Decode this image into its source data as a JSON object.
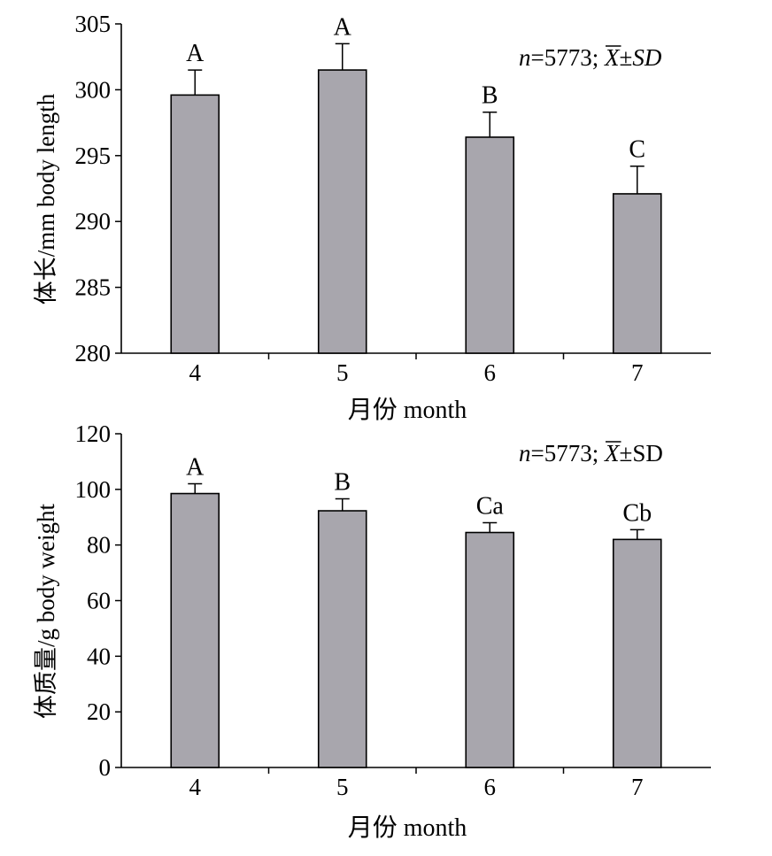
{
  "chart_data": [
    {
      "type": "bar",
      "categories": [
        "4",
        "5",
        "6",
        "7"
      ],
      "values": [
        299.6,
        301.5,
        296.4,
        292.1
      ],
      "errors": [
        1.9,
        2.0,
        1.9,
        2.1
      ],
      "labels": [
        "A",
        "A",
        "B",
        "C"
      ],
      "annotation": {
        "n": "n",
        "rest": "=5773; ",
        "xbar": "X",
        "pm": "±",
        "sd": "SD",
        "sd_italic": true
      },
      "xlabel": "月份 month",
      "ylabel": "体长/mm body length",
      "ylim": [
        280,
        305
      ],
      "yticks": [
        "280",
        "285",
        "290",
        "295",
        "300",
        "305"
      ],
      "bar_color": "#a8a6ad",
      "grid": false
    },
    {
      "type": "bar",
      "categories": [
        "4",
        "5",
        "6",
        "7"
      ],
      "values": [
        98.5,
        92.3,
        84.5,
        82.0
      ],
      "errors": [
        3.5,
        4.3,
        3.5,
        3.5
      ],
      "labels": [
        "A",
        "B",
        "Ca",
        "Cb"
      ],
      "annotation": {
        "n": "n",
        "rest": "=5773; ",
        "xbar": "X",
        "pm": "±",
        "sd": "SD",
        "sd_italic": false
      },
      "xlabel": "月份 month",
      "ylabel": "体质量/g body weight",
      "ylim": [
        0,
        120
      ],
      "yticks": [
        "0",
        "20",
        "40",
        "60",
        "80",
        "100",
        "120"
      ],
      "bar_color": "#a8a6ad",
      "grid": false
    }
  ]
}
